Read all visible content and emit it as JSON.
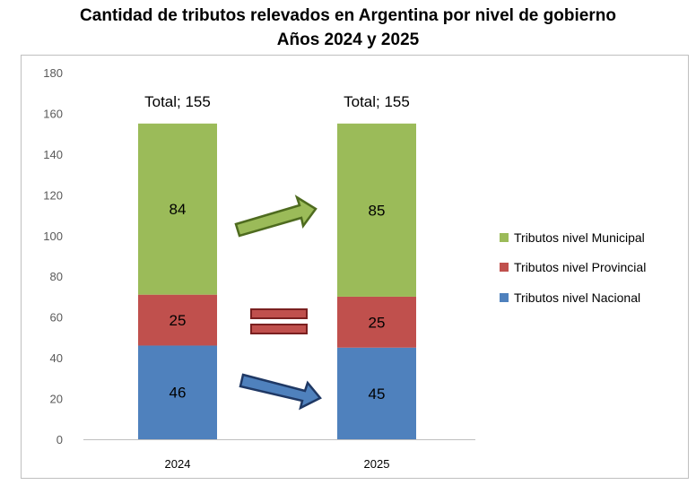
{
  "title_line1": "Cantidad de tributos relevados en Argentina por nivel de gobierno",
  "title_line2": "Años 2024 y 2025",
  "chart_data": {
    "type": "bar",
    "stacked": true,
    "categories": [
      "2024",
      "2025"
    ],
    "series": [
      {
        "name": "Tributos nivel Nacional",
        "values": [
          46,
          45
        ],
        "color": "#4f81bd"
      },
      {
        "name": "Tributos nivel Provincial",
        "values": [
          25,
          25
        ],
        "color": "#c0504d"
      },
      {
        "name": "Tributos nivel Municipal",
        "values": [
          84,
          85
        ],
        "color": "#9bbb59"
      }
    ],
    "totals": [
      {
        "label": "Total; 155"
      },
      {
        "label": "Total; 155"
      }
    ],
    "ylim": [
      0,
      180
    ],
    "yticks": [
      0,
      20,
      40,
      60,
      80,
      100,
      120,
      140,
      160,
      180
    ],
    "legend_position": "right",
    "grid": false,
    "annotations": [
      {
        "type": "arrow-up",
        "series": "Tributos nivel Municipal",
        "color": "#9bbb59"
      },
      {
        "type": "equal-sign",
        "series": "Tributos nivel Provincial",
        "color": "#c0504d"
      },
      {
        "type": "arrow-down",
        "series": "Tributos nivel Nacional",
        "color": "#4f81bd"
      }
    ],
    "xlabel": "",
    "ylabel": ""
  }
}
